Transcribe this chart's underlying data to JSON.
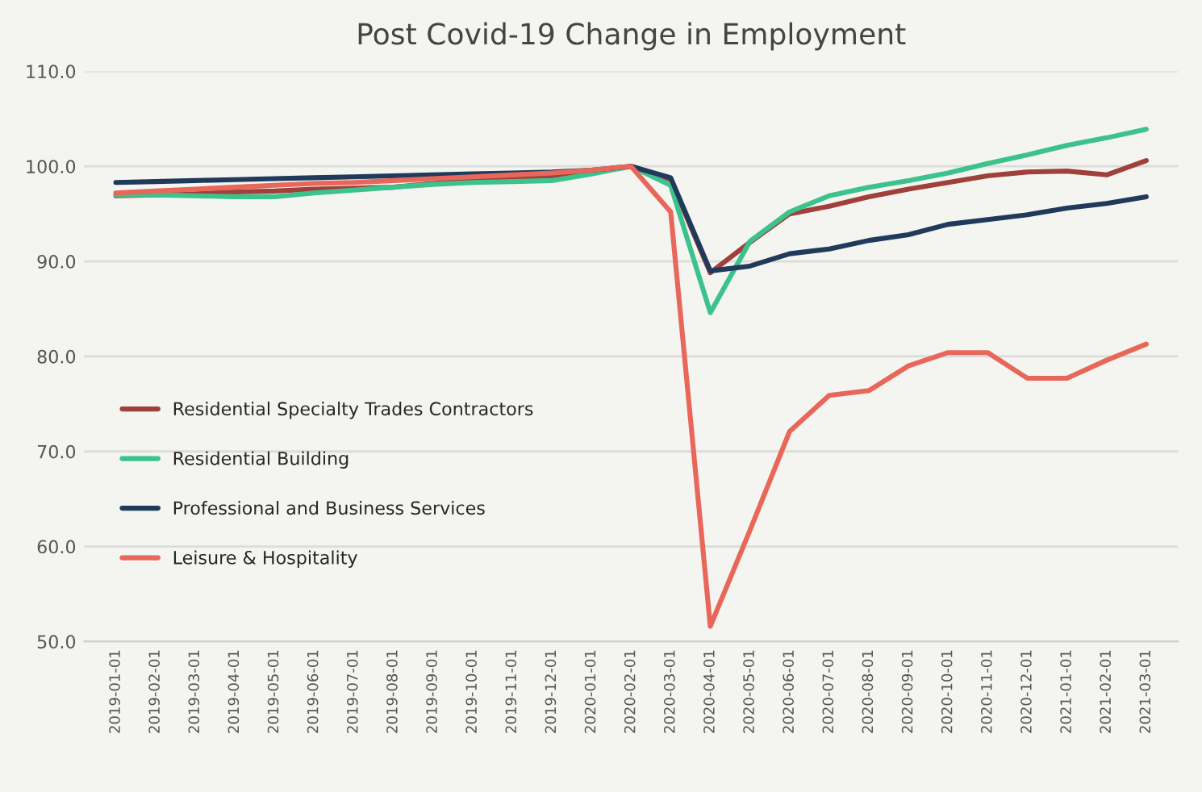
{
  "chart_data": {
    "type": "line",
    "title": "Post Covid-19 Change in Employment",
    "categories": [
      "2019-01-01",
      "2019-02-01",
      "2019-03-01",
      "2019-04-01",
      "2019-05-01",
      "2019-06-01",
      "2019-07-01",
      "2019-08-01",
      "2019-09-01",
      "2019-10-01",
      "2019-11-01",
      "2019-12-01",
      "2020-01-01",
      "2020-02-01",
      "2020-03-01",
      "2020-04-01",
      "2020-05-01",
      "2020-06-01",
      "2020-07-01",
      "2020-08-01",
      "2020-09-01",
      "2020-10-01",
      "2020-11-01",
      "2020-12-01",
      "2021-01-01",
      "2021-02-01",
      "2021-03-01"
    ],
    "series": [
      {
        "name": "Residential Specialty Trades Contractors",
        "color": "#a0403a",
        "values": [
          96.9,
          97.0,
          97.1,
          97.3,
          97.4,
          97.6,
          97.7,
          97.8,
          98.2,
          98.5,
          98.8,
          99.0,
          99.4,
          100.0,
          98.6,
          88.8,
          92.0,
          95.0,
          95.8,
          96.8,
          97.6,
          98.3,
          99.0,
          99.4,
          99.5,
          99.1,
          100.6
        ]
      },
      {
        "name": "Residential Building",
        "color": "#3cc28c",
        "values": [
          97.0,
          97.0,
          96.9,
          96.8,
          96.8,
          97.2,
          97.5,
          97.8,
          98.1,
          98.3,
          98.4,
          98.5,
          99.2,
          100.0,
          98.0,
          84.6,
          92.1,
          95.2,
          96.9,
          97.8,
          98.5,
          99.3,
          100.3,
          101.2,
          102.2,
          103.0,
          103.9
        ]
      },
      {
        "name": "Professional and Business Services",
        "color": "#1f3a5a",
        "values": [
          98.3,
          98.4,
          98.5,
          98.6,
          98.7,
          98.8,
          98.9,
          99.0,
          99.1,
          99.2,
          99.3,
          99.4,
          99.6,
          100.0,
          98.8,
          89.0,
          89.5,
          90.8,
          91.3,
          92.2,
          92.8,
          93.9,
          94.4,
          94.9,
          95.6,
          96.1,
          96.8
        ]
      },
      {
        "name": "Leisure & Hospitality",
        "color": "#e8675a",
        "values": [
          97.2,
          97.4,
          97.6,
          97.8,
          98.0,
          98.2,
          98.3,
          98.5,
          98.7,
          98.9,
          99.1,
          99.3,
          99.6,
          100.0,
          95.2,
          51.6,
          61.7,
          72.1,
          75.9,
          76.4,
          79.0,
          80.4,
          80.4,
          77.7,
          77.7,
          79.6,
          81.3
        ]
      }
    ],
    "ylim": [
      50,
      110
    ],
    "yticks": [
      {
        "value": 50,
        "label": "50.0"
      },
      {
        "value": 60,
        "label": "60.0"
      },
      {
        "value": 70,
        "label": "70.0"
      },
      {
        "value": 80,
        "label": "80.0"
      },
      {
        "value": 90,
        "label": "90.0"
      },
      {
        "value": 100,
        "label": "100.0"
      },
      {
        "value": 110,
        "label": "110.0"
      }
    ],
    "grid": "y",
    "legend": "center left"
  }
}
